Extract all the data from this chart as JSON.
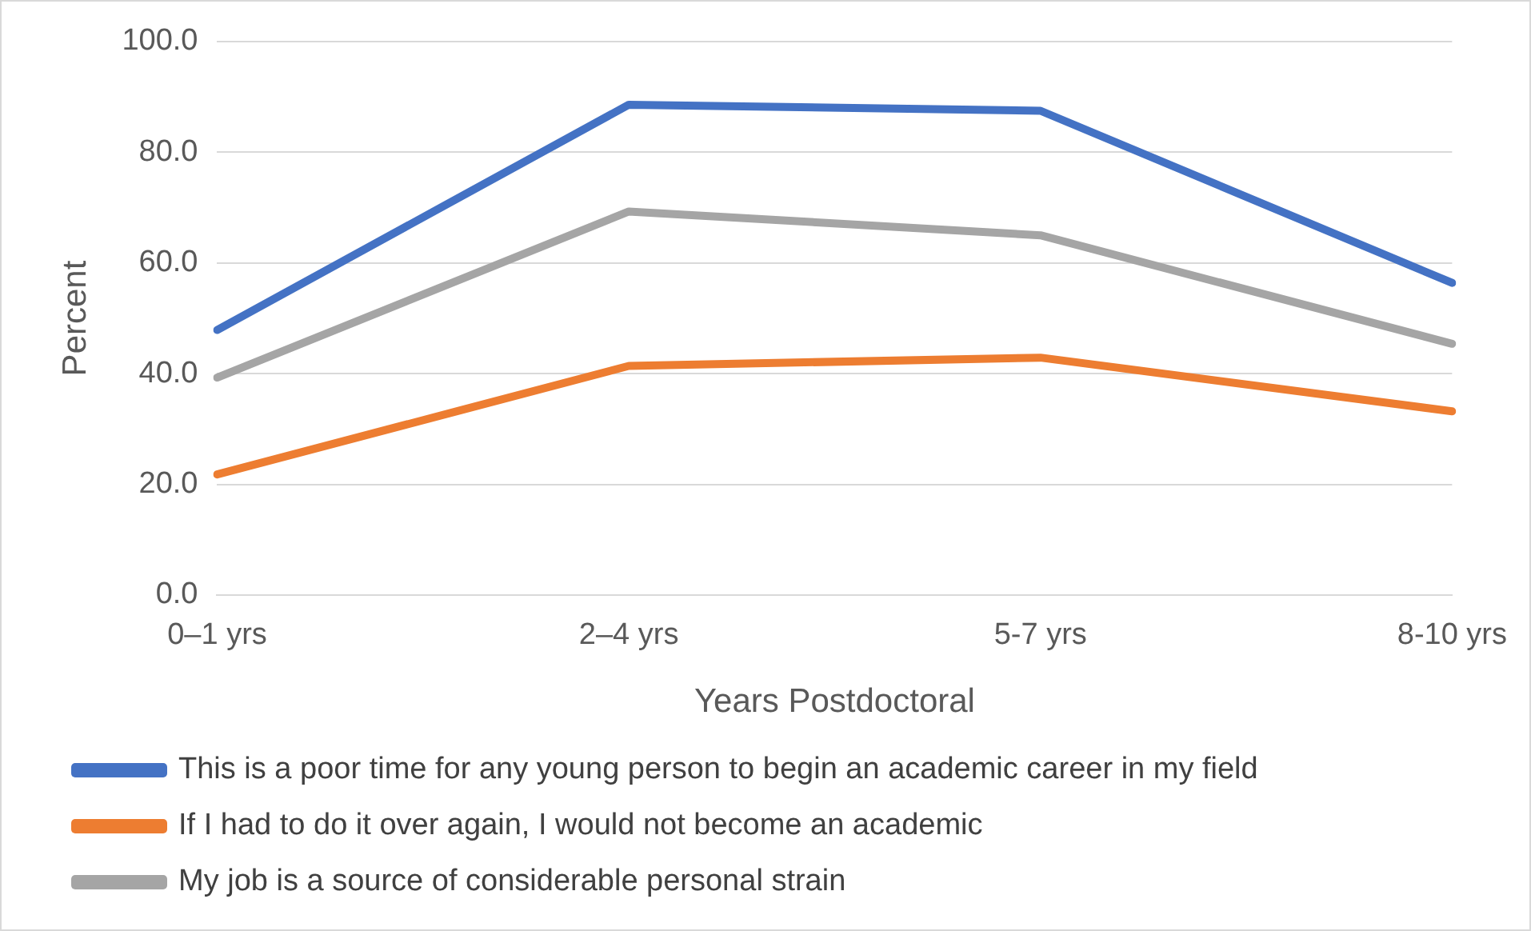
{
  "chart_data": {
    "type": "line",
    "xlabel": "Years Postdoctoral",
    "ylabel": "Percent",
    "categories": [
      "0–1 yrs",
      "2–4 yrs",
      "5-7 yrs",
      "8-10 yrs"
    ],
    "series": [
      {
        "name": "This is a poor time for any young person to begin an academic career in my field",
        "color": "#4472c4",
        "values": [
          47.9,
          88.6,
          87.5,
          56.4
        ]
      },
      {
        "name": "If I had to do it over again, I would not become an academic",
        "color": "#ed7d31",
        "values": [
          21.8,
          41.4,
          42.9,
          33.2
        ]
      },
      {
        "name": "My job is a source of considerable personal strain",
        "color": "#a5a5a5",
        "values": [
          39.3,
          69.3,
          65.0,
          45.4
        ]
      }
    ],
    "ylim": [
      0,
      100
    ],
    "yticks": [
      {
        "value": 0,
        "label": "0.0"
      },
      {
        "value": 20,
        "label": "20.0"
      },
      {
        "value": 40,
        "label": "40.0"
      },
      {
        "value": 60,
        "label": "60.0"
      },
      {
        "value": 80,
        "label": "80.0"
      },
      {
        "value": 100,
        "label": "100.0"
      }
    ],
    "grid": "y",
    "legend": "bottom",
    "marker": "none",
    "line_style": "solid"
  }
}
